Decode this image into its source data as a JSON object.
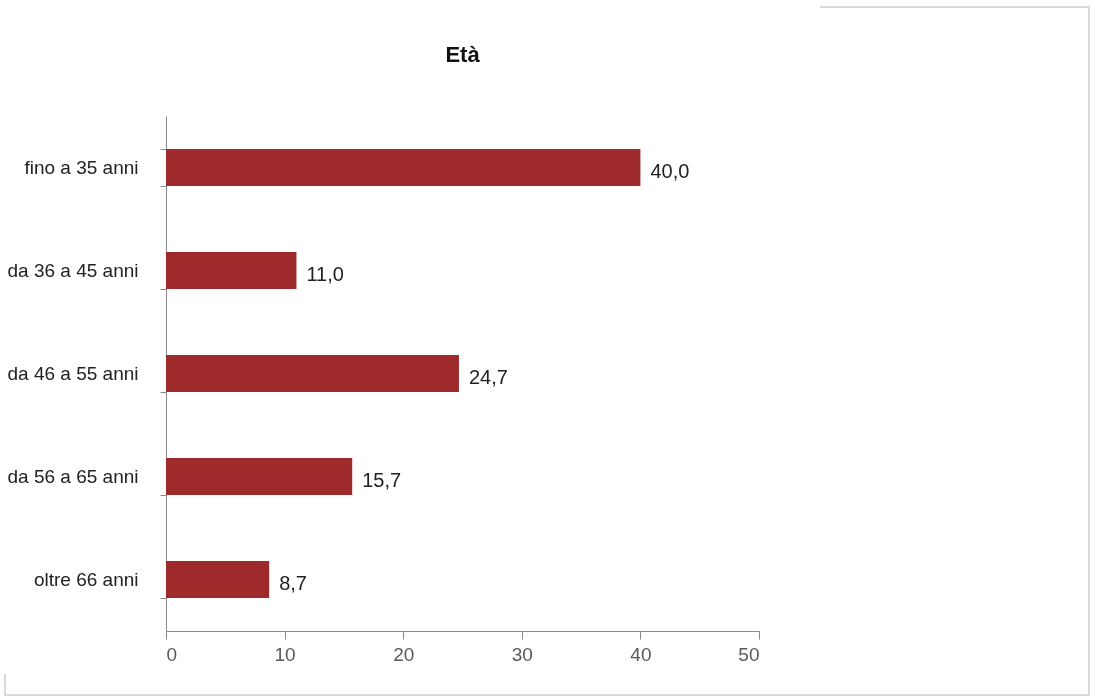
{
  "chart_data": {
    "type": "bar",
    "title": "Età",
    "orientation": "horizontal",
    "categories": [
      "fino a 35 anni",
      "da 36 a 45 anni",
      "da 46 a 55 anni",
      "da 56 a 65 anni",
      "oltre 66 anni"
    ],
    "values": [
      40.0,
      11.0,
      24.7,
      15.7,
      8.7
    ],
    "value_labels": [
      "40,0",
      "11,0",
      "24,7",
      "15,7",
      "8,7"
    ],
    "color": "#9e2a2b",
    "xlim": [
      0,
      50
    ],
    "xticks": [
      0,
      10,
      20,
      30,
      40,
      50
    ]
  }
}
